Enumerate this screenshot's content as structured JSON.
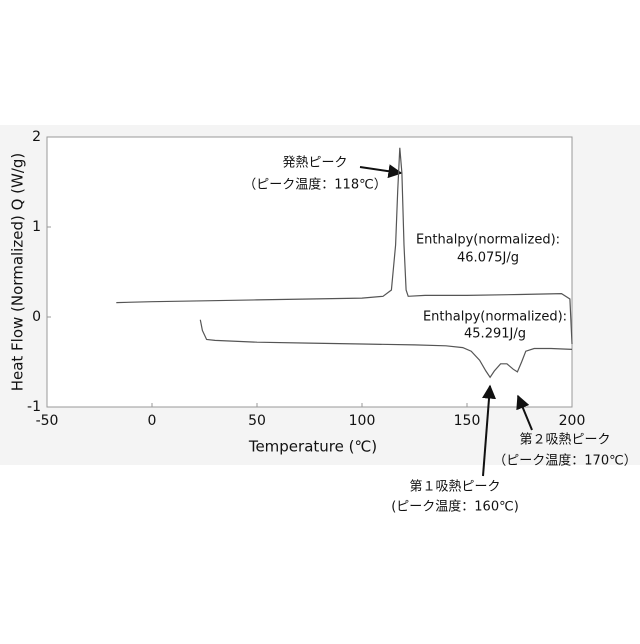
{
  "chart_data": {
    "type": "line",
    "xlabel": "Temperature (℃)",
    "ylabel": "Heat Flow (Normalized) Q (W/g)",
    "xlim": [
      -50,
      200
    ],
    "xticks": [
      -50,
      0,
      50,
      100,
      150,
      200
    ],
    "ylim": [
      -1,
      2
    ],
    "yticks": [
      -1,
      0,
      1,
      2
    ],
    "series": [
      {
        "color": "#555555",
        "x": [
          -17,
          0,
          25,
          50,
          75,
          100,
          110,
          114,
          116,
          117,
          118,
          119,
          120,
          121,
          122,
          130,
          150,
          175,
          195,
          199,
          200
        ],
        "values": [
          0.16,
          0.17,
          0.18,
          0.19,
          0.2,
          0.21,
          0.23,
          0.3,
          0.8,
          1.4,
          1.88,
          1.6,
          0.8,
          0.3,
          0.23,
          0.24,
          0.24,
          0.25,
          0.26,
          0.2,
          -0.3
        ]
      },
      {
        "color": "#555555",
        "x": [
          23,
          24,
          26,
          30,
          50,
          75,
          100,
          125,
          140,
          148,
          152,
          156,
          159,
          161,
          163,
          166,
          169,
          172,
          174,
          176,
          178,
          182,
          190,
          200
        ],
        "values": [
          -0.03,
          -0.15,
          -0.25,
          -0.26,
          -0.28,
          -0.29,
          -0.3,
          -0.31,
          -0.32,
          -0.34,
          -0.38,
          -0.48,
          -0.6,
          -0.67,
          -0.6,
          -0.52,
          -0.52,
          -0.58,
          -0.61,
          -0.5,
          -0.38,
          -0.35,
          -0.35,
          -0.36
        ]
      }
    ],
    "annotations": [
      "発熱ピーク",
      "（ピーク温度：118℃）",
      "Enthalpy(normalized):",
      "46.075J/g",
      "Enthalpy(normalized):",
      "45.291J/g",
      "第２吸熱ピーク",
      "（ピーク温度：170℃）",
      "第１吸熱ピーク",
      "(ピーク温度：160℃)"
    ]
  }
}
